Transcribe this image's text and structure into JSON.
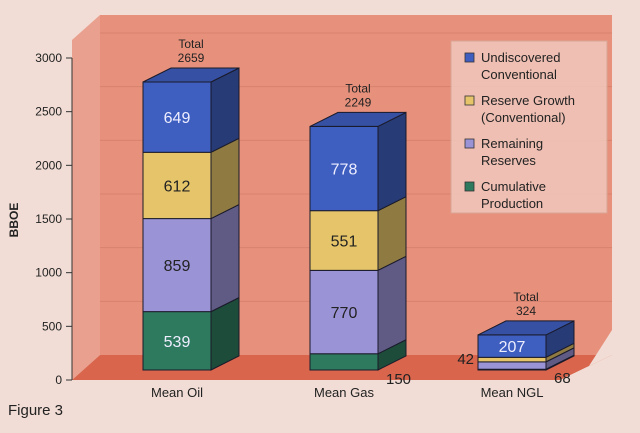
{
  "figure_label": "Figure 3",
  "chart_data": {
    "type": "bar",
    "stacked": true,
    "three_d": true,
    "ylabel": "BBOE",
    "xlabel": "",
    "ylim": [
      0,
      3000
    ],
    "yticks": [
      0,
      500,
      1000,
      1500,
      2000,
      2500,
      3000
    ],
    "categories": [
      "Mean Oil",
      "Mean Gas",
      "Mean NGL"
    ],
    "totals_label": "Total",
    "totals": [
      2659,
      2249,
      324
    ],
    "series": [
      {
        "name": "Cumulative Production",
        "color": "#2e7a5e",
        "values": [
          539,
          150,
          7
        ],
        "labels": [
          "539",
          "150",
          ""
        ]
      },
      {
        "name": "Remaining Reserves",
        "color": "#9a93d6",
        "values": [
          859,
          770,
          68
        ],
        "labels": [
          "859",
          "770",
          "68"
        ]
      },
      {
        "name": "Reserve Growth (Conventional)",
        "color": "#e6c56a",
        "values": [
          612,
          551,
          42
        ],
        "labels": [
          "612",
          "551",
          "42"
        ]
      },
      {
        "name": "Undiscovered Conventional",
        "color": "#3f5fc0",
        "values": [
          649,
          778,
          207
        ],
        "labels": [
          "649",
          "778",
          "207"
        ]
      }
    ],
    "legend": {
      "placement": "top-right",
      "entries": [
        {
          "line1": "Undiscovered",
          "line2": "Conventional",
          "color": "#3f5fc0"
        },
        {
          "line1": "Reserve Growth",
          "line2": "(Conventional)",
          "color": "#e6c56a"
        },
        {
          "line1": "Remaining",
          "line2": "Reserves",
          "color": "#9a93d6"
        },
        {
          "line1": "Cumulative",
          "line2": "Production",
          "color": "#2e7a5e"
        }
      ]
    },
    "grid": true
  }
}
